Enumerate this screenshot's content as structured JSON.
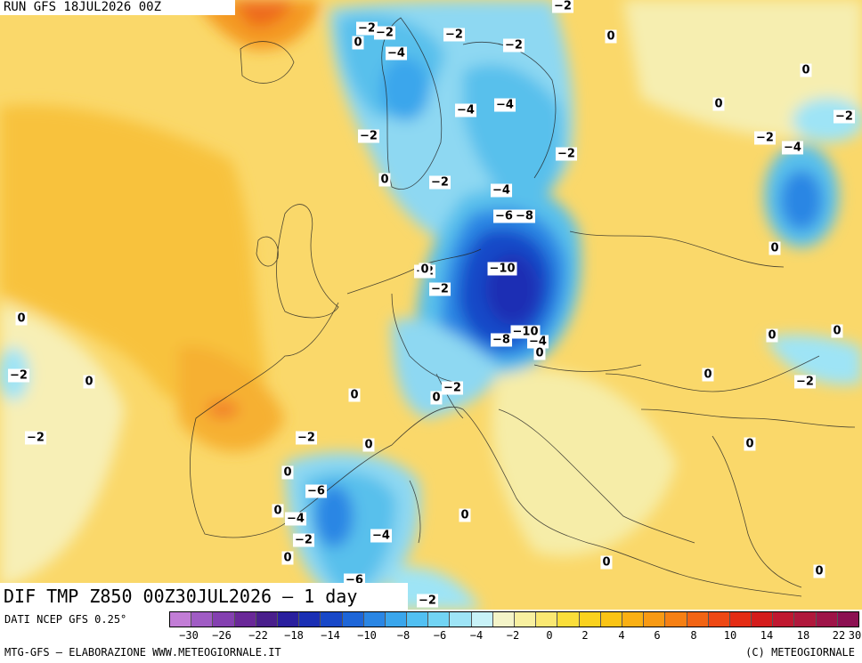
{
  "header": {
    "run_label": "RUN GFS 18JUL2026 00Z"
  },
  "map": {
    "title": "DIF TMP Z850 00Z30JUL2026 – 1 day",
    "contour_labels": [
      "-2",
      "-2",
      "-2",
      "-2",
      "-2",
      "-4",
      "-4",
      "-4",
      "0",
      "0",
      "0",
      "-2",
      "-2",
      "0",
      "-4",
      "-4",
      "-2",
      "-2",
      "-2",
      "0",
      "-2",
      "-4",
      "-4",
      "-6",
      "-8",
      "0",
      "0",
      "-10",
      "-2",
      "0",
      "0",
      "-10",
      "-8",
      "-4",
      "0",
      "0",
      "-2",
      "0",
      "-2",
      "-2",
      "-2",
      "0",
      "0",
      "0",
      "0",
      "0",
      "-2",
      "0",
      "-6",
      "-4",
      "0",
      "-2",
      "-4",
      "0",
      "0",
      "-6",
      "-2",
      "0",
      "0"
    ]
  },
  "legend": {
    "colors": [
      "#c27dd6",
      "#a05cc4",
      "#8440b0",
      "#6a2898",
      "#4a1f8c",
      "#2a1f9e",
      "#1a2fb4",
      "#1848c8",
      "#1e66d8",
      "#2a86e4",
      "#3aa6ec",
      "#52c0f2",
      "#72d4f4",
      "#9ee4f6",
      "#c8f2f8",
      "#f4f4c8",
      "#f8f0a0",
      "#fae872",
      "#fade3a",
      "#fad21e",
      "#fac414",
      "#fab014",
      "#f89a14",
      "#f68014",
      "#f26414",
      "#ee4814",
      "#e42c14",
      "#d41c1c",
      "#c01830",
      "#b0183c",
      "#9e1448",
      "#8c1052"
    ],
    "tick_labels": [
      "-30",
      "-26",
      "-22",
      "-18",
      "-14",
      "-10",
      "-8",
      "-6",
      "-4",
      "-2",
      "0",
      "2",
      "4",
      "6",
      "8",
      "10",
      "14",
      "18",
      "22",
      "30"
    ]
  },
  "footer": {
    "source": "DATI NCEP GFS 0.25°",
    "credit": "MTG-GFS – ELABORAZIONE WWW.METEOGIORNALE.IT",
    "copyright": "(C) METEOGIORNALE"
  }
}
